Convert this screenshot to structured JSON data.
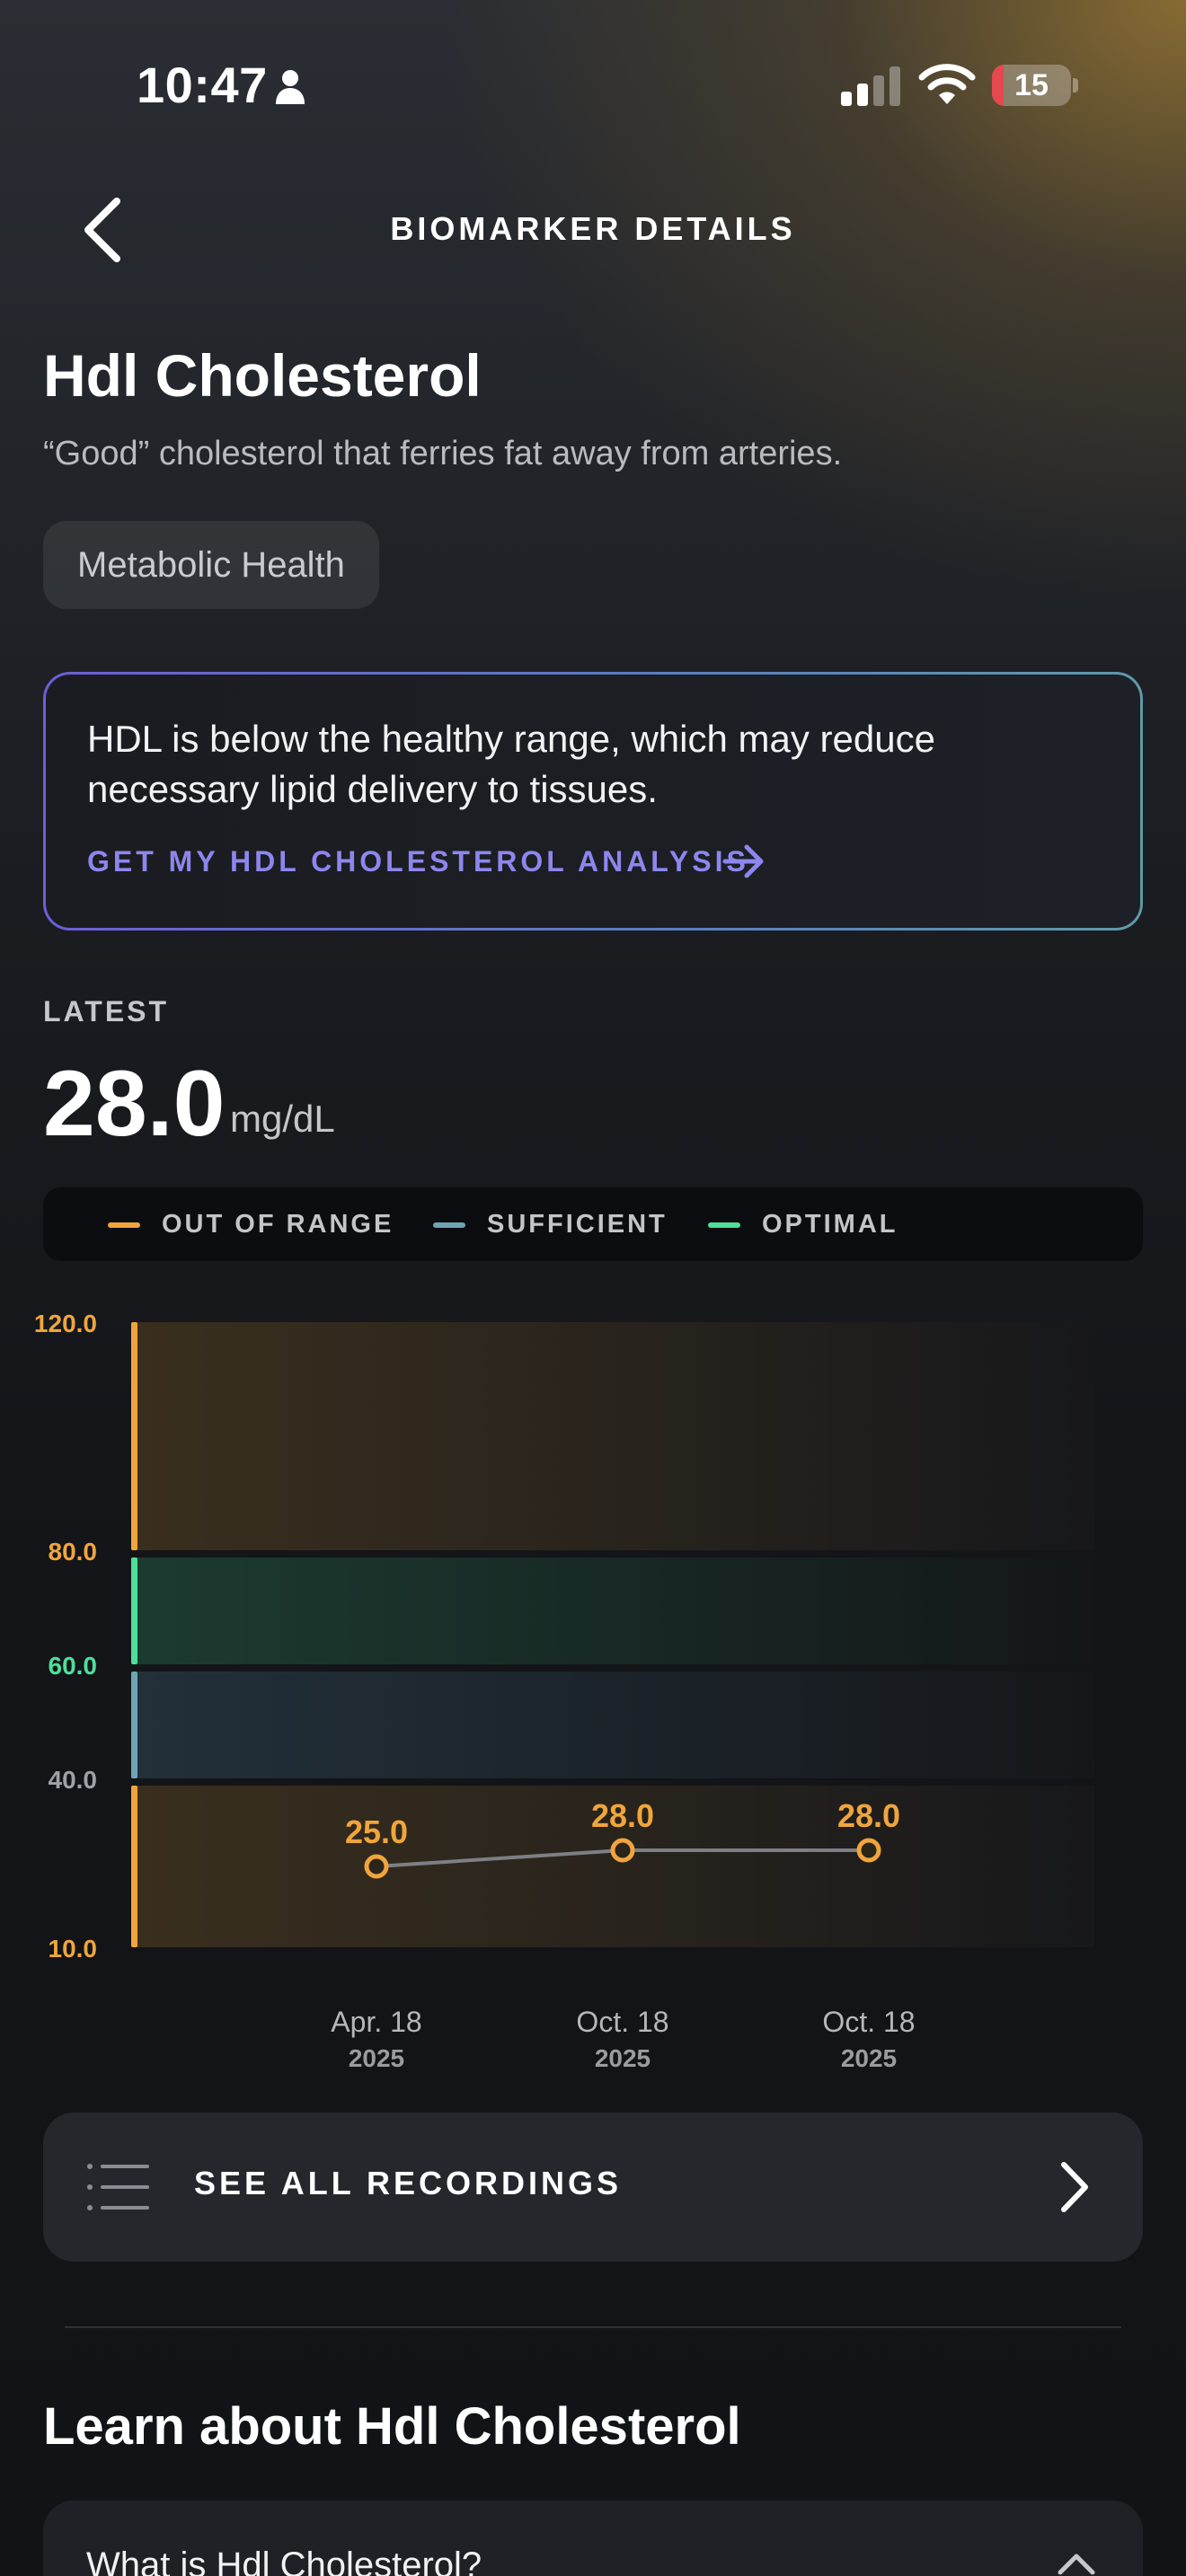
{
  "status_bar": {
    "time": "10:47",
    "battery_level": "15"
  },
  "header": {
    "title": "BIOMARKER DETAILS"
  },
  "biomarker": {
    "name": "Hdl Cholesterol",
    "description": "“Good” cholesterol that ferries fat away from arteries.",
    "category": "Metabolic Health"
  },
  "insight": {
    "text": "HDL is below the healthy range, which may reduce necessary lipid delivery to tissues.",
    "link_label": "GET MY HDL CHOLESTEROL ANALYSIS"
  },
  "latest": {
    "label": "LATEST",
    "value": "28.0",
    "unit": "mg/dL"
  },
  "legend": [
    {
      "label": "OUT OF RANGE",
      "color": "#f0a53c"
    },
    {
      "label": "SUFFICIENT",
      "color": "#6fa4b4"
    },
    {
      "label": "OPTIMAL",
      "color": "#4fdf9a"
    }
  ],
  "colors": {
    "out_of_range": "#f0a53c",
    "sufficient": "#6fa4b4",
    "optimal": "#4fdf9a",
    "accent_link": "#8e86ee"
  },
  "chart_data": {
    "type": "line",
    "y_ticks": [
      {
        "value": 120,
        "label": "120.0",
        "zone": "out_of_range"
      },
      {
        "value": 80,
        "label": "80.0",
        "zone": "out_of_range"
      },
      {
        "value": 60,
        "label": "60.0",
        "zone": "optimal"
      },
      {
        "value": 40,
        "label": "40.0",
        "zone": "sufficient"
      },
      {
        "value": 10,
        "label": "10.0",
        "zone": "out_of_range"
      }
    ],
    "bands": [
      {
        "zone": "out_of_range",
        "from": 80,
        "to": 120
      },
      {
        "zone": "optimal",
        "from": 60,
        "to": 80
      },
      {
        "zone": "sufficient",
        "from": 40,
        "to": 60
      },
      {
        "zone": "out_of_range",
        "from": 10,
        "to": 40
      }
    ],
    "points": [
      {
        "value": 25.0,
        "label": "25.0",
        "date": "Apr. 18",
        "year": "2025"
      },
      {
        "value": 28.0,
        "label": "28.0",
        "date": "Oct. 18",
        "year": "2025"
      },
      {
        "value": 28.0,
        "label": "28.0",
        "date": "Oct. 18",
        "year": "2025"
      }
    ]
  },
  "recordings": {
    "label": "SEE ALL RECORDINGS"
  },
  "learn": {
    "title": "Learn about Hdl Cholesterol",
    "faq": [
      {
        "question": "What is Hdl Cholesterol?"
      }
    ]
  }
}
